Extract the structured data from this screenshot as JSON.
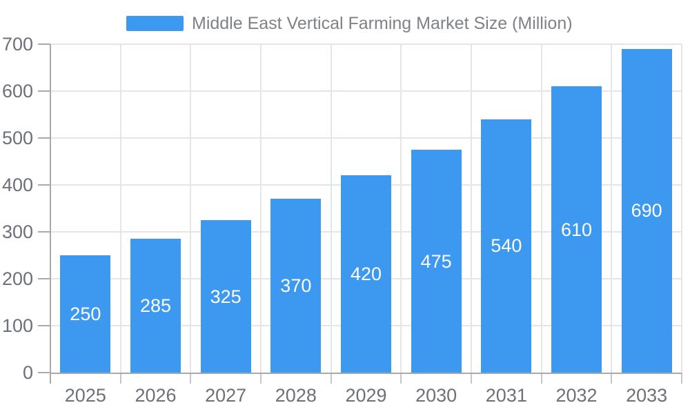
{
  "legend": {
    "label": "Middle East Vertical Farming Market Size (Million)"
  },
  "colors": {
    "bar": "#3d99f0",
    "data_label": "#ffffff",
    "grid_line": "#e5e5e5",
    "axis_line": "#a9a9a9",
    "x_tick": "#c6c6c6",
    "axis_text": "#6e7079",
    "legend_text": "#7e8288",
    "background": "#ffffff"
  },
  "chart_data": {
    "type": "bar",
    "title": "Middle East Vertical Farming Market Size (Million)",
    "categories": [
      "2025",
      "2026",
      "2027",
      "2028",
      "2029",
      "2030",
      "2031",
      "2032",
      "2033"
    ],
    "values": [
      250,
      285,
      325,
      370,
      420,
      475,
      540,
      610,
      690
    ],
    "series": [
      {
        "name": "Middle East Vertical Farming Market Size (Million)",
        "values": [
          250,
          285,
          325,
          370,
          420,
          475,
          540,
          610,
          690
        ]
      }
    ],
    "xlabel": "",
    "ylabel": "",
    "ylim": [
      0,
      700
    ],
    "yticks": [
      0,
      100,
      200,
      300,
      400,
      500,
      600,
      700
    ],
    "grid": true,
    "legend_position": "top-center",
    "data_label_position": "inside-center"
  }
}
